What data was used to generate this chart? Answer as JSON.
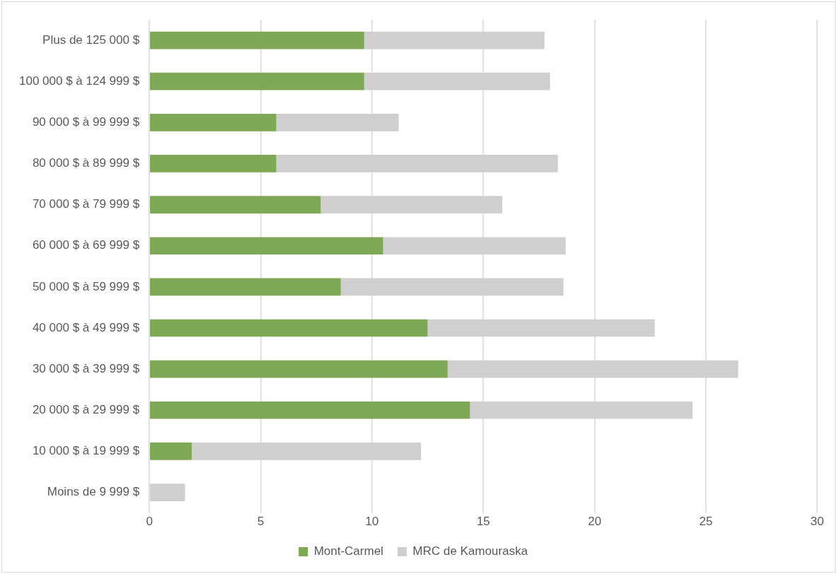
{
  "chart_data": {
    "type": "bar",
    "orientation": "horizontal",
    "stacked": true,
    "categories": [
      "Plus de 125 000 $",
      "100 000 $ à 124 999 $",
      "90 000 $ à 99 999 $",
      "80 000 $ à 89 999 $",
      "70 000 $ à 79 999 $",
      "60 000 $ à 69 999 $",
      "50 000 $ à 59 999 $",
      "40 000 $ à 49 999 $",
      "30 000 $ à 39 999 $",
      "20 000 $ à 29 999 $",
      "10 000 $ à 19 999 $",
      "Moins de 9 999 $"
    ],
    "series": [
      {
        "name": "Mont-Carmel",
        "color": "#7ea856",
        "values": [
          9.65,
          9.65,
          5.7,
          5.7,
          7.7,
          10.5,
          8.6,
          12.5,
          13.4,
          14.4,
          1.9,
          0
        ]
      },
      {
        "name": "MRC de Kamouraska",
        "color": "#d0cece",
        "values": [
          8.1,
          8.35,
          5.5,
          12.65,
          8.15,
          8.2,
          10.0,
          10.2,
          13.05,
          10.0,
          10.3,
          1.6
        ]
      }
    ],
    "xlim": [
      0,
      30
    ],
    "xticks": [
      0,
      5,
      10,
      15,
      20,
      25,
      30
    ],
    "grid": "x",
    "legend": "bottom"
  }
}
